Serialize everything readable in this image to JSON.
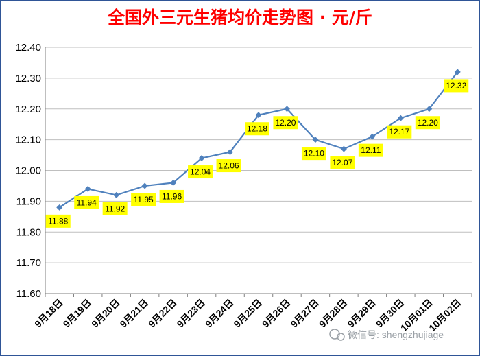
{
  "chart_data": {
    "type": "line",
    "title": "全国外三元生猪均价走势图 · 元/斤",
    "categories": [
      "9月18日",
      "9月19日",
      "9月20日",
      "9月21日",
      "9月22日",
      "9月23日",
      "9月24日",
      "9月25日",
      "9月26日",
      "9月27日",
      "9月28日",
      "9月29日",
      "9月30日",
      "10月01日",
      "10月02日"
    ],
    "series": [
      {
        "values": [
          11.88,
          11.94,
          11.92,
          11.95,
          11.96,
          12.04,
          12.06,
          12.18,
          12.2,
          12.1,
          12.07,
          12.11,
          12.17,
          12.2,
          12.32
        ]
      }
    ],
    "data_labels": [
      "11.88",
      "11.94",
      "11.92",
      "11.95",
      "11.96",
      "12.04",
      "12.06",
      "12.18",
      "12.20",
      "12.10",
      "12.07",
      "12.11",
      "12.17",
      "12.20",
      "12.32"
    ],
    "yticks": [
      "11.60",
      "11.70",
      "11.80",
      "11.90",
      "12.00",
      "12.10",
      "12.20",
      "12.30",
      "12.40"
    ],
    "ylim": [
      11.6,
      12.4
    ],
    "grid": "horizontal",
    "legend": "none",
    "colors": {
      "line": "#4f81bd",
      "grid": "#bfbfbf",
      "label_bg": "#ffff00",
      "title": "#ff0000",
      "border": "#2f5597"
    }
  },
  "watermark": "微信号: shengzhujiage"
}
